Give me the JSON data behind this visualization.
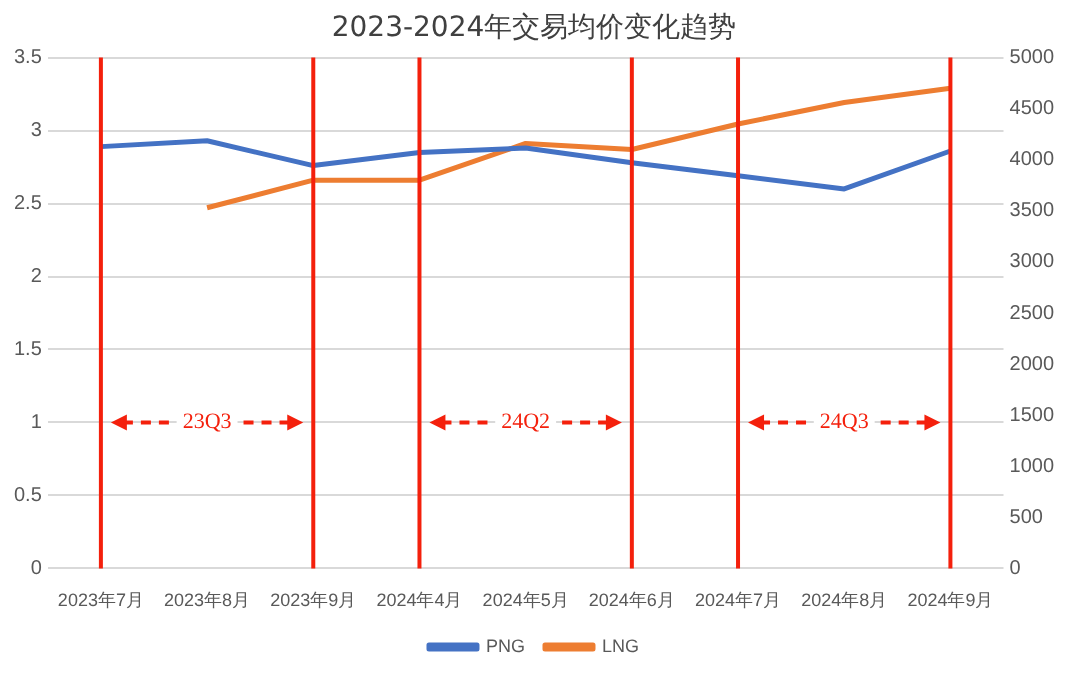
{
  "chart_data": {
    "type": "line",
    "title": "2023-2024年交易均价变化趋势",
    "categories": [
      "2023年7月",
      "2023年8月",
      "2023年9月",
      "2024年4月",
      "2024年5月",
      "2024年6月",
      "2024年7月",
      "2024年8月",
      "2024年9月"
    ],
    "series": [
      {
        "name": "PNG",
        "color": "#4472c4",
        "values": [
          2.89,
          2.93,
          2.76,
          2.85,
          2.88,
          2.78,
          2.69,
          2.6,
          2.86
        ]
      },
      {
        "name": "LNG",
        "color": "#ed7d31",
        "axis": "y2",
        "values": [
          null,
          3530,
          3800,
          3800,
          4160,
          4100,
          4350,
          4560,
          4700
        ]
      }
    ],
    "ylim": [
      0,
      3.5
    ],
    "yticks": [
      0,
      0.5,
      1,
      1.5,
      2,
      2.5,
      3,
      3.5
    ],
    "y2lim": [
      0,
      5000
    ],
    "y2ticks": [
      0,
      500,
      1000,
      1500,
      2000,
      2500,
      3000,
      3500,
      4000,
      4500,
      5000
    ],
    "ref_lines": [
      {
        "axis": "x",
        "value": "2023年7月",
        "color": "#f4200c"
      },
      {
        "axis": "x",
        "value": "2023年9月",
        "color": "#f4200c"
      },
      {
        "axis": "x",
        "value": "2024年4月",
        "color": "#f4200c"
      },
      {
        "axis": "x",
        "value": "2024年6月",
        "color": "#f4200c"
      },
      {
        "axis": "x",
        "value": "2024年7月",
        "color": "#f4200c"
      },
      {
        "axis": "x",
        "value": "2024年9月",
        "color": "#f4200c"
      }
    ],
    "annotations": [
      {
        "text": "23Q3",
        "x": "2023年8月",
        "y": 1
      },
      {
        "text": "24Q2",
        "x": "2024年5月",
        "y": 1
      },
      {
        "text": "24Q3",
        "x": "2024年8月",
        "y": 1
      }
    ],
    "grid": "y",
    "legend": "bottom",
    "marker": "none",
    "line_style": "solid"
  }
}
